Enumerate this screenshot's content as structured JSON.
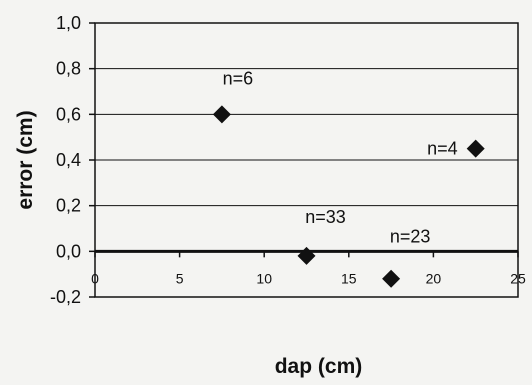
{
  "chart_data": {
    "type": "scatter",
    "xlabel": "dap (cm)",
    "ylabel": "error (cm)",
    "xlim": [
      0,
      25
    ],
    "ylim": [
      -0.2,
      1.0
    ],
    "x_ticks": [
      "0",
      "5",
      "10",
      "15",
      "20",
      "25"
    ],
    "x_tick_values": [
      0,
      5,
      10,
      15,
      20,
      25
    ],
    "y_ticks": [
      "1,0",
      "0,8",
      "0,6",
      "0,4",
      "0,2",
      "0,0",
      "-0,2"
    ],
    "y_tick_values": [
      1.0,
      0.8,
      0.6,
      0.4,
      0.2,
      0.0,
      -0.2
    ],
    "grid": "horizontal",
    "series": [
      {
        "marker": "diamond",
        "color": "#111111",
        "points": [
          {
            "x": 7.5,
            "y": 0.6
          },
          {
            "x": 12.5,
            "y": -0.02
          },
          {
            "x": 17.5,
            "y": -0.12
          },
          {
            "x": 22.5,
            "y": 0.45
          }
        ]
      }
    ],
    "annotations": [
      {
        "text": "n=6",
        "x": 7.5,
        "y": 0.6
      },
      {
        "text": "n=33",
        "x": 12.5,
        "y": -0.02
      },
      {
        "text": "n=23",
        "x": 17.5,
        "y": -0.12
      },
      {
        "text": "n=4",
        "x": 22.5,
        "y": 0.45
      }
    ]
  }
}
